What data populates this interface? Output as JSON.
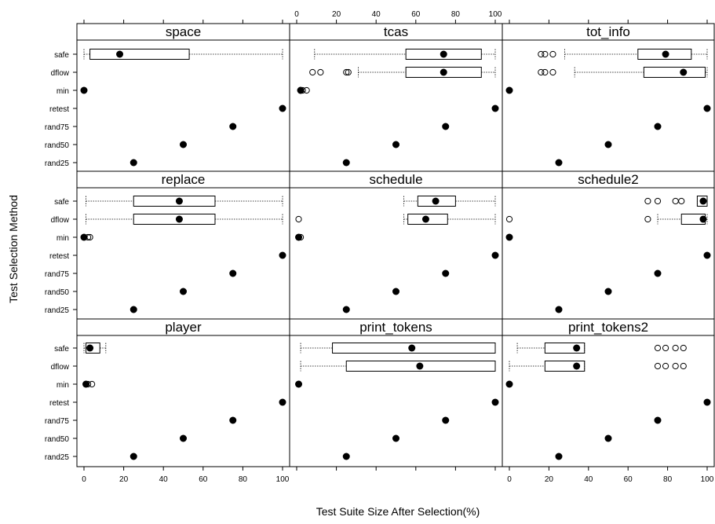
{
  "chart_data": {
    "type": "boxplot-trellis",
    "xlabel": "Test Suite Size After Selection(%)",
    "ylabel": "Test Selection Method",
    "xlim": [
      0,
      100
    ],
    "x_ticks": [
      0,
      20,
      40,
      60,
      80,
      100
    ],
    "x_tick_labels": [
      "0",
      "20",
      "40",
      "60",
      "80",
      "100"
    ],
    "categories": [
      "safe",
      "dflow",
      "min",
      "retest",
      "rand75",
      "rand50",
      "rand25"
    ],
    "layout": "3x3",
    "panels": [
      {
        "name": "space",
        "series": [
          {
            "method": "safe",
            "whisker_lo": 0,
            "q1": 3,
            "median": 18,
            "q3": 53,
            "whisker_hi": 100,
            "outliers": []
          },
          {
            "method": "min",
            "value": 0,
            "outliers": []
          },
          {
            "method": "retest",
            "value": 100,
            "outliers": []
          },
          {
            "method": "rand75",
            "value": 75,
            "outliers": []
          },
          {
            "method": "rand50",
            "value": 50,
            "outliers": []
          },
          {
            "method": "rand25",
            "value": 25,
            "outliers": []
          }
        ]
      },
      {
        "name": "tcas",
        "series": [
          {
            "method": "safe",
            "whisker_lo": 9,
            "q1": 55,
            "median": 74,
            "q3": 93,
            "whisker_hi": 100,
            "outliers": []
          },
          {
            "method": "dflow",
            "whisker_lo": 31,
            "q1": 55,
            "median": 74,
            "q3": 93,
            "whisker_hi": 100,
            "outliers": [
              8,
              12,
              25,
              26
            ]
          },
          {
            "method": "min",
            "value": 2,
            "outliers": [
              3,
              5
            ]
          },
          {
            "method": "retest",
            "value": 100,
            "outliers": []
          },
          {
            "method": "rand75",
            "value": 75,
            "outliers": []
          },
          {
            "method": "rand50",
            "value": 50,
            "outliers": []
          },
          {
            "method": "rand25",
            "value": 25,
            "outliers": []
          }
        ]
      },
      {
        "name": "tot_info",
        "series": [
          {
            "method": "safe",
            "whisker_lo": 28,
            "q1": 65,
            "median": 79,
            "q3": 92,
            "whisker_hi": 100,
            "outliers": [
              16,
              18,
              22
            ]
          },
          {
            "method": "dflow",
            "whisker_lo": 33,
            "q1": 68,
            "median": 88,
            "q3": 99,
            "whisker_hi": 100,
            "outliers": [
              16,
              18,
              22
            ]
          },
          {
            "method": "min",
            "value": 0,
            "outliers": []
          },
          {
            "method": "retest",
            "value": 100,
            "outliers": []
          },
          {
            "method": "rand75",
            "value": 75,
            "outliers": []
          },
          {
            "method": "rand50",
            "value": 50,
            "outliers": []
          },
          {
            "method": "rand25",
            "value": 25,
            "outliers": []
          }
        ]
      },
      {
        "name": "replace",
        "series": [
          {
            "method": "safe",
            "whisker_lo": 1,
            "q1": 25,
            "median": 48,
            "q3": 66,
            "whisker_hi": 100,
            "outliers": []
          },
          {
            "method": "dflow",
            "whisker_lo": 1,
            "q1": 25,
            "median": 48,
            "q3": 66,
            "whisker_hi": 100,
            "outliers": []
          },
          {
            "method": "min",
            "value": 0,
            "outliers": [
              2,
              3
            ]
          },
          {
            "method": "retest",
            "value": 100,
            "outliers": []
          },
          {
            "method": "rand75",
            "value": 75,
            "outliers": []
          },
          {
            "method": "rand50",
            "value": 50,
            "outliers": []
          },
          {
            "method": "rand25",
            "value": 25,
            "outliers": []
          }
        ]
      },
      {
        "name": "schedule",
        "series": [
          {
            "method": "safe",
            "whisker_lo": 54,
            "q1": 61,
            "median": 70,
            "q3": 80,
            "whisker_hi": 100,
            "outliers": []
          },
          {
            "method": "dflow",
            "whisker_lo": 54,
            "q1": 56,
            "median": 65,
            "q3": 76,
            "whisker_hi": 100,
            "outliers": [
              1
            ]
          },
          {
            "method": "min",
            "value": 1,
            "outliers": [
              2
            ]
          },
          {
            "method": "retest",
            "value": 100,
            "outliers": []
          },
          {
            "method": "rand75",
            "value": 75,
            "outliers": []
          },
          {
            "method": "rand50",
            "value": 50,
            "outliers": []
          },
          {
            "method": "rand25",
            "value": 25,
            "outliers": []
          }
        ]
      },
      {
        "name": "schedule2",
        "series": [
          {
            "method": "safe",
            "whisker_lo": 95,
            "q1": 95,
            "median": 98,
            "q3": 100,
            "whisker_hi": 100,
            "outliers": [
              70,
              75,
              84,
              87
            ]
          },
          {
            "method": "dflow",
            "whisker_lo": 75,
            "q1": 87,
            "median": 98,
            "q3": 99,
            "whisker_hi": 100,
            "outliers": [
              0,
              70
            ]
          },
          {
            "method": "min",
            "value": 0,
            "outliers": []
          },
          {
            "method": "retest",
            "value": 100,
            "outliers": []
          },
          {
            "method": "rand75",
            "value": 75,
            "outliers": []
          },
          {
            "method": "rand50",
            "value": 50,
            "outliers": []
          },
          {
            "method": "rand25",
            "value": 25,
            "outliers": []
          }
        ]
      },
      {
        "name": "player",
        "series": [
          {
            "method": "safe",
            "whisker_lo": 0,
            "q1": 1,
            "median": 3,
            "q3": 8,
            "whisker_hi": 11,
            "outliers": []
          },
          {
            "method": "min",
            "value": 1,
            "outliers": [
              2,
              4
            ]
          },
          {
            "method": "retest",
            "value": 100,
            "outliers": []
          },
          {
            "method": "rand75",
            "value": 75,
            "outliers": []
          },
          {
            "method": "rand50",
            "value": 50,
            "outliers": []
          },
          {
            "method": "rand25",
            "value": 25,
            "outliers": []
          }
        ]
      },
      {
        "name": "print_tokens",
        "series": [
          {
            "method": "safe",
            "whisker_lo": 2,
            "q1": 18,
            "median": 58,
            "q3": 100,
            "whisker_hi": 100,
            "outliers": []
          },
          {
            "method": "dflow",
            "whisker_lo": 2,
            "q1": 25,
            "median": 62,
            "q3": 100,
            "whisker_hi": 100,
            "outliers": []
          },
          {
            "method": "min",
            "value": 1,
            "outliers": [
              1
            ]
          },
          {
            "method": "retest",
            "value": 100,
            "outliers": []
          },
          {
            "method": "rand75",
            "value": 75,
            "outliers": []
          },
          {
            "method": "rand50",
            "value": 50,
            "outliers": []
          },
          {
            "method": "rand25",
            "value": 25,
            "outliers": []
          }
        ]
      },
      {
        "name": "print_tokens2",
        "series": [
          {
            "method": "safe",
            "whisker_lo": 4,
            "q1": 18,
            "median": 34,
            "q3": 38,
            "whisker_hi": 38,
            "outliers": [
              75,
              79,
              84,
              88
            ]
          },
          {
            "method": "dflow",
            "whisker_lo": 0,
            "q1": 18,
            "median": 34,
            "q3": 38,
            "whisker_hi": 38,
            "outliers": [
              75,
              79,
              84,
              88
            ]
          },
          {
            "method": "min",
            "value": 0,
            "outliers": []
          },
          {
            "method": "retest",
            "value": 100,
            "outliers": []
          },
          {
            "method": "rand75",
            "value": 75,
            "outliers": []
          },
          {
            "method": "rand50",
            "value": 50,
            "outliers": []
          },
          {
            "method": "rand25",
            "value": 25,
            "outliers": []
          }
        ]
      }
    ]
  }
}
